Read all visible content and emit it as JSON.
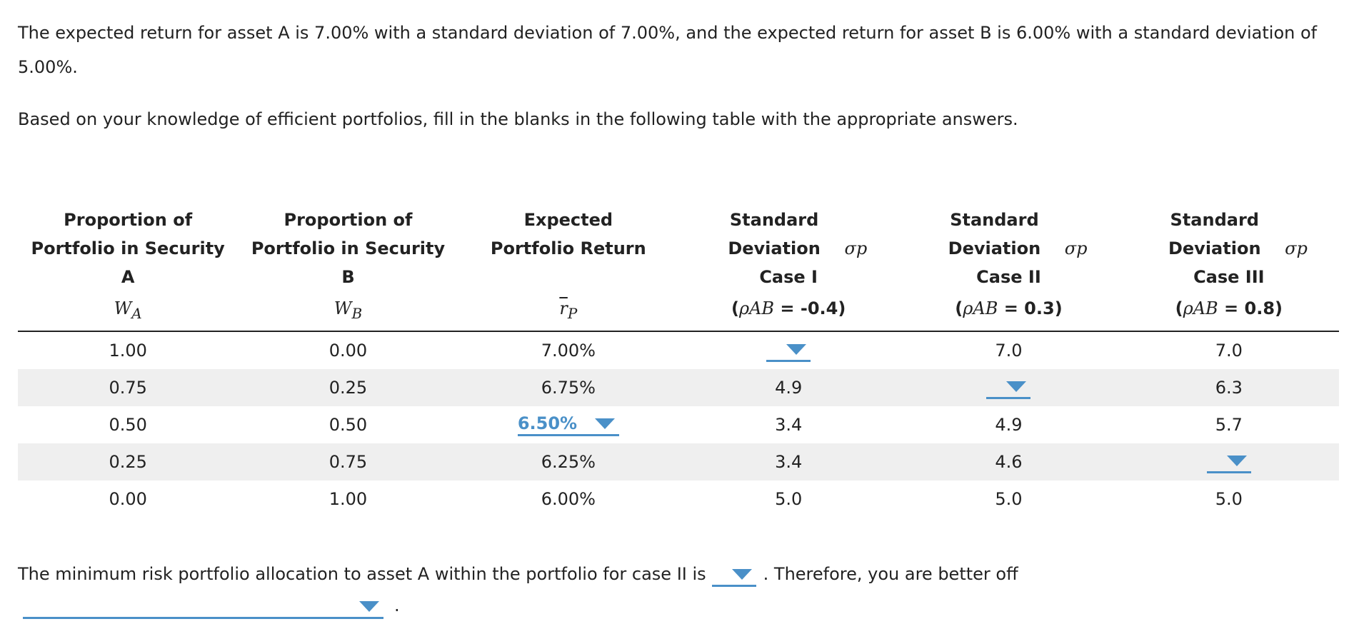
{
  "intro": {
    "line1": "The expected return for asset A is 7.00% with a standard deviation of 7.00%, and the expected return for asset B is 6.00% with a standard deviation of 5.00%.",
    "line2": "Based on your knowledge of efficient portfolios, fill in the blanks in the following table with the appropriate answers."
  },
  "table": {
    "headers": [
      {
        "title": "Proportion of Portfolio in Security A",
        "var": "W"
      },
      {
        "title": "Proportion of Portfolio in Security B",
        "var": "W"
      },
      {
        "title": "Expected Portfolio Return",
        "var": "r"
      },
      {
        "title": "Standard Deviation",
        "sigma": "σp",
        "case": "Case I",
        "rho": "ρAB",
        "rho_value": "= -0.4"
      },
      {
        "title": "Standard Deviation",
        "sigma": "σp",
        "case": "Case II",
        "rho": "ρAB",
        "rho_value": "= 0.3"
      },
      {
        "title": "Standard Deviation",
        "sigma": "σp",
        "case": "Case III",
        "rho": "ρAB",
        "rho_value": "= 0.8"
      }
    ],
    "var_subscripts": [
      "A",
      "B",
      "P"
    ],
    "rows": [
      [
        "1.00",
        "0.00",
        "7.00%",
        "",
        "7.0",
        "7.0"
      ],
      [
        "0.75",
        "0.25",
        "6.75%",
        "4.9",
        "",
        "6.3"
      ],
      [
        "0.50",
        "0.50",
        "6.50%",
        "3.4",
        "4.9",
        "5.7"
      ],
      [
        "0.25",
        "0.75",
        "6.25%",
        "3.4",
        "4.6",
        ""
      ],
      [
        "0.00",
        "1.00",
        "6.00%",
        "5.0",
        "5.0",
        "5.0"
      ]
    ]
  },
  "bottom": {
    "text_before": "The minimum risk portfolio allocation to asset A within the portfolio for case II is",
    "text_after": ". Therefore, you are better off",
    "end_punct": "."
  },
  "colors": {
    "accent": "#4a90c8",
    "row_stripe": "#efefef"
  }
}
